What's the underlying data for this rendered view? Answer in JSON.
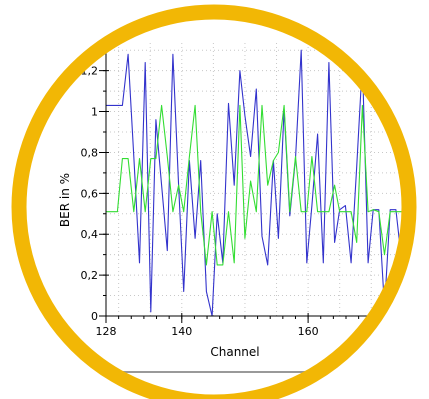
{
  "chart_data": {
    "type": "line",
    "title": "",
    "xlabel": "Channel",
    "ylabel": "BER in %",
    "xlim": [
      128,
      175.5
    ],
    "ylim": [
      0,
      1.35
    ],
    "x_ticks": [
      "128",
      "140",
      "160"
    ],
    "y_ticks": [
      "0",
      "0,2",
      "0,4",
      "0,6",
      "0,8",
      "1",
      "1,2"
    ],
    "grid": true,
    "legend": "none",
    "series": [
      {
        "color": "#3333cc",
        "x": [
          128,
          128.9,
          129.8,
          130.6,
          131.5,
          132.4,
          133.3,
          134.2,
          135.1,
          135.9,
          136.8,
          137.7,
          138.6,
          139.5,
          140.3,
          141.2,
          142.1,
          143,
          143.9,
          144.8,
          145.6,
          146.5,
          147.4,
          148.3,
          149.2,
          150,
          150.9,
          151.8,
          152.7,
          153.6,
          154.5,
          155.3,
          156.2,
          157.1,
          158,
          158.9,
          159.8,
          160.6,
          161.5,
          162.4,
          163.3,
          164.2,
          165,
          165.9,
          166.8,
          167.7,
          168.6,
          169.5,
          170.3,
          171.2,
          172.1,
          173,
          173.9,
          174.8,
          175.5
        ],
        "y": [
          1.03,
          1.03,
          1.03,
          1.03,
          1.28,
          0.78,
          0.26,
          1.24,
          0.02,
          0.96,
          0.64,
          0.32,
          1.28,
          0.64,
          0.12,
          0.76,
          0.38,
          0.76,
          0.12,
          0.0,
          0.5,
          0.26,
          1.04,
          0.64,
          1.2,
          0.98,
          0.78,
          1.11,
          0.39,
          0.25,
          0.76,
          0.38,
          1.01,
          0.49,
          0.77,
          1.3,
          0.26,
          0.54,
          0.89,
          0.26,
          1.24,
          0.36,
          0.52,
          0.54,
          0.26,
          0.73,
          1.24,
          0.26,
          0.52,
          0.52,
          0.04,
          0.52,
          0.52,
          0.27,
          0.52
        ]
      },
      {
        "color": "#33dd33",
        "x": [
          128,
          128.9,
          129.8,
          130.6,
          131.5,
          132.4,
          133.3,
          134.2,
          135.1,
          135.9,
          136.8,
          137.7,
          138.6,
          139.5,
          140.3,
          141.2,
          142.1,
          143,
          143.9,
          144.8,
          145.6,
          146.5,
          147.4,
          148.3,
          149.2,
          150,
          150.9,
          151.8,
          152.7,
          153.6,
          154.5,
          155.3,
          156.2,
          157.1,
          158,
          158.9,
          159.8,
          160.6,
          161.5,
          162.4,
          163.3,
          164.2,
          165,
          165.9,
          166.8,
          167.7,
          168.6,
          169.5,
          170.3,
          171.2,
          172.1,
          173,
          173.9,
          174.8,
          175.5
        ],
        "y": [
          0.51,
          0.51,
          0.51,
          0.77,
          0.77,
          0.51,
          0.77,
          0.51,
          0.77,
          0.77,
          1.03,
          0.78,
          0.51,
          0.64,
          0.51,
          0.78,
          1.03,
          0.51,
          0.25,
          0.51,
          0.25,
          0.25,
          0.51,
          0.26,
          1.03,
          0.38,
          0.66,
          0.51,
          1.03,
          0.64,
          0.76,
          0.8,
          1.03,
          0.51,
          0.78,
          0.51,
          0.51,
          0.78,
          0.51,
          0.51,
          0.51,
          0.64,
          0.51,
          0.51,
          0.51,
          0.36,
          1.03,
          0.51,
          0.52,
          0.51,
          0.3,
          0.51,
          0.51,
          0.51,
          0.51
        ]
      }
    ]
  }
}
